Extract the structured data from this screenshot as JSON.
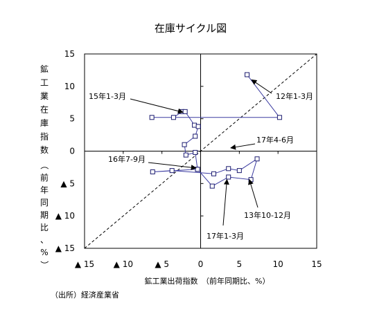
{
  "chart_data": {
    "type": "scatter",
    "title": "在庫サイクル図",
    "xlabel": "鉱工業出荷指数　（前年同期比、%）",
    "ylabel_main": [
      "鉱",
      "工",
      "業",
      "在",
      "庫",
      "指",
      "数"
    ],
    "ylabel_paren": [
      "（",
      "前",
      "年",
      "同",
      "期",
      "比",
      "、",
      "%",
      "）"
    ],
    "xlim": [
      -15,
      15
    ],
    "ylim": [
      -15,
      15
    ],
    "x_ticks": [
      {
        "value": -15,
        "label": "▲ 15"
      },
      {
        "value": -10,
        "label": "▲ 10"
      },
      {
        "value": -5,
        "label": "▲ 5"
      },
      {
        "value": 0,
        "label": "0"
      },
      {
        "value": 5,
        "label": "5"
      },
      {
        "value": 10,
        "label": "10"
      },
      {
        "value": 15,
        "label": "15"
      }
    ],
    "y_ticks": [
      {
        "value": 15,
        "label": "15"
      },
      {
        "value": 10,
        "label": "10"
      },
      {
        "value": 5,
        "label": "5"
      },
      {
        "value": 0,
        "label": "0"
      },
      {
        "value": -5,
        "label": "▲ 5"
      },
      {
        "value": -10,
        "label": "▲ 10"
      },
      {
        "value": -15,
        "label": "▲ 15"
      }
    ],
    "diagonal": {
      "from": [
        -15,
        -15
      ],
      "to": [
        15,
        15
      ],
      "style": "dashed"
    },
    "series": [
      {
        "line_color": "#3a3aa0",
        "marker": "open-square",
        "x": [
          6,
          10.2,
          -6.3,
          -3.5,
          -2.4,
          -2.0,
          -0.8,
          -0.3,
          -0.7,
          -2.1,
          -1.9,
          -0.7,
          -0.4,
          -6.2,
          -3.7,
          1.7,
          3.6,
          5.0,
          7.3,
          6.5,
          3.6,
          1.5,
          -0.4
        ],
        "y": [
          11.8,
          5.2,
          5.2,
          5.2,
          6.1,
          6.1,
          4.0,
          3.8,
          2.3,
          1.0,
          -0.6,
          -0.2,
          -2.8,
          -3.2,
          -3.0,
          -3.5,
          -2.7,
          -3.0,
          -1.2,
          -4.4,
          -4.0,
          -5.4,
          -2.8
        ]
      }
    ],
    "annotations": [
      {
        "text": "12年1-3月",
        "arrow_to": [
          6.6,
          11.0
        ]
      },
      {
        "text": "15年1-3月",
        "arrow_to": [
          -2.3,
          6.0
        ]
      },
      {
        "text": "17年4-6月",
        "arrow_to": [
          3.9,
          0.5
        ]
      },
      {
        "text": "16年7-9月",
        "arrow_to": [
          -0.6,
          -2.6
        ]
      },
      {
        "text": "13年10-12月",
        "arrow_to": [
          6.3,
          -4.4
        ]
      },
      {
        "text": "17年1-3月",
        "arrow_to": [
          3.4,
          -4.4
        ]
      }
    ],
    "grid": false,
    "legend": "none"
  },
  "source_note": "（出所）経済産業省"
}
